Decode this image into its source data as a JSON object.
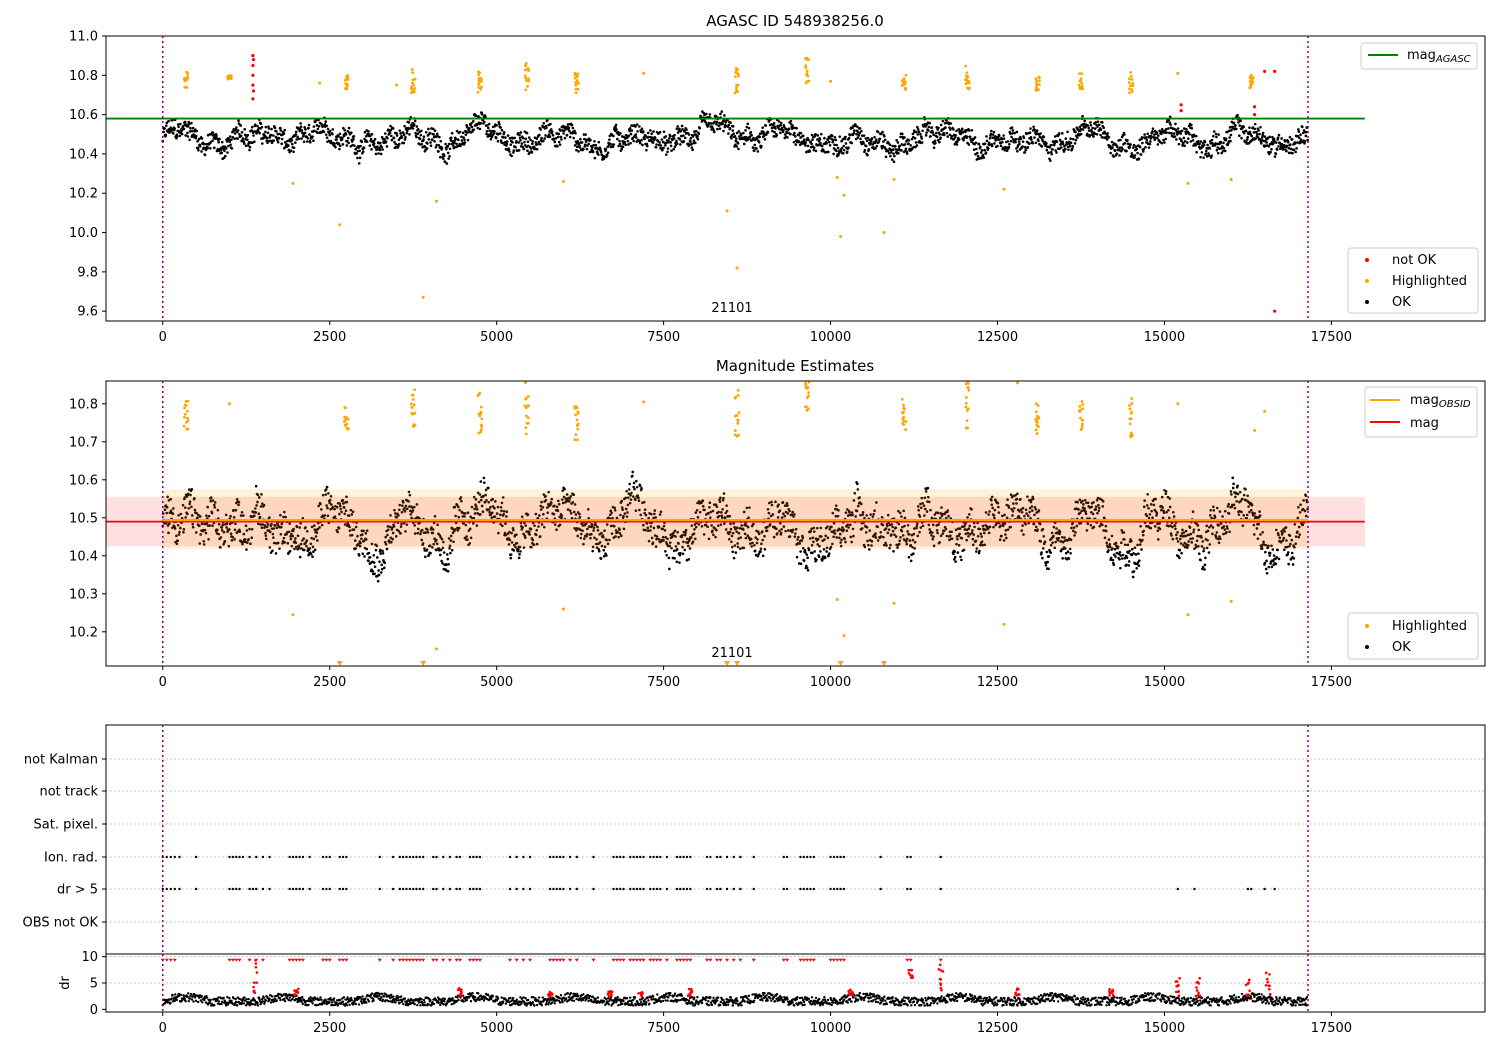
{
  "chart_data": [
    {
      "type": "scatter",
      "title": "AGASC ID 548938256.0",
      "xlim": [
        -850,
        19800
      ],
      "ylim": [
        9.55,
        11.0
      ],
      "xticks": [
        0,
        2500,
        5000,
        7500,
        10000,
        12500,
        15000,
        17500
      ],
      "yticks": [
        9.6,
        9.8,
        10.0,
        10.2,
        10.4,
        10.6,
        10.8,
        11.0
      ],
      "ytick_labels": [
        "9.6",
        "9.8",
        "10.0",
        "10.2",
        "10.4",
        "10.6",
        "10.8",
        "11.0"
      ],
      "obs_boundaries": [
        0,
        17150
      ],
      "obs_label": {
        "text": "21101",
        "x": 8600,
        "y": 9.58
      },
      "hline": {
        "name": "mag_AGASC",
        "y": 10.58,
        "x_range": [
          -850,
          18000
        ],
        "color": "#008000"
      },
      "series_style": {
        "ok": "#000000",
        "highlighted": "#ffa500",
        "not_ok": "#ff0000"
      },
      "ok_band": {
        "center": 10.48,
        "amplitude": 0.1
      },
      "highlighted_clusters": [
        {
          "x": 350,
          "y": [
            10.72,
            10.82
          ]
        },
        {
          "x": 1000,
          "y": [
            10.78,
            10.8
          ]
        },
        {
          "x": 2750,
          "y": [
            10.73,
            10.8
          ]
        },
        {
          "x": 3750,
          "y": [
            10.71,
            10.84
          ]
        },
        {
          "x": 4750,
          "y": [
            10.71,
            10.82
          ]
        },
        {
          "x": 5450,
          "y": [
            10.72,
            10.87
          ]
        },
        {
          "x": 6200,
          "y": [
            10.7,
            10.81
          ]
        },
        {
          "x": 8600,
          "y": [
            10.7,
            10.84
          ]
        },
        {
          "x": 9650,
          "y": [
            10.76,
            10.89
          ]
        },
        {
          "x": 11100,
          "y": [
            10.72,
            10.82
          ]
        },
        {
          "x": 12050,
          "y": [
            10.73,
            10.85
          ]
        },
        {
          "x": 13100,
          "y": [
            10.72,
            10.81
          ]
        },
        {
          "x": 13750,
          "y": [
            10.73,
            10.81
          ]
        },
        {
          "x": 14500,
          "y": [
            10.71,
            10.82
          ]
        },
        {
          "x": 16300,
          "y": [
            10.73,
            10.8
          ]
        }
      ],
      "highlighted_points": [
        {
          "x": 1950,
          "y": 10.25
        },
        {
          "x": 2650,
          "y": 10.04
        },
        {
          "x": 3900,
          "y": 9.67
        },
        {
          "x": 4100,
          "y": 10.16
        },
        {
          "x": 6000,
          "y": 10.26
        },
        {
          "x": 8450,
          "y": 10.11
        },
        {
          "x": 8600,
          "y": 9.82
        },
        {
          "x": 10100,
          "y": 10.28
        },
        {
          "x": 10150,
          "y": 9.98
        },
        {
          "x": 10200,
          "y": 10.19
        },
        {
          "x": 10800,
          "y": 10.0
        },
        {
          "x": 10950,
          "y": 10.27
        },
        {
          "x": 12600,
          "y": 10.22
        },
        {
          "x": 15350,
          "y": 10.25
        },
        {
          "x": 16000,
          "y": 10.27
        },
        {
          "x": 3500,
          "y": 10.75
        },
        {
          "x": 7200,
          "y": 10.81
        },
        {
          "x": 2350,
          "y": 10.76
        },
        {
          "x": 10000,
          "y": 10.77
        },
        {
          "x": 15200,
          "y": 10.81
        }
      ],
      "not_ok_points": [
        {
          "x": 1350,
          "y": 10.68
        },
        {
          "x": 1350,
          "y": 10.75
        },
        {
          "x": 1350,
          "y": 10.8
        },
        {
          "x": 1350,
          "y": 10.85
        },
        {
          "x": 1350,
          "y": 10.9
        },
        {
          "x": 1360,
          "y": 10.72
        },
        {
          "x": 1360,
          "y": 10.88
        },
        {
          "x": 15250,
          "y": 10.62
        },
        {
          "x": 15250,
          "y": 10.65
        },
        {
          "x": 16350,
          "y": 10.6
        },
        {
          "x": 16350,
          "y": 10.64
        },
        {
          "x": 16500,
          "y": 10.82
        },
        {
          "x": 16650,
          "y": 10.82
        },
        {
          "x": 16650,
          "y": 9.6
        }
      ],
      "legend_top": [
        {
          "label": "mag",
          "sub": "AGASC",
          "color": "#008000"
        }
      ],
      "legend_bottom": [
        {
          "label": "not OK",
          "color": "#ff0000"
        },
        {
          "label": "Highlighted",
          "color": "#ffa500"
        },
        {
          "label": "OK",
          "color": "#000000"
        }
      ]
    },
    {
      "type": "scatter",
      "title": "Magnitude Estimates",
      "xlim": [
        -850,
        19800
      ],
      "ylim": [
        10.11,
        10.86
      ],
      "xticks": [
        0,
        2500,
        5000,
        7500,
        10000,
        12500,
        15000,
        17500
      ],
      "yticks": [
        10.2,
        10.3,
        10.4,
        10.5,
        10.6,
        10.7,
        10.8
      ],
      "ytick_labels": [
        "10.2",
        "10.3",
        "10.4",
        "10.5",
        "10.6",
        "10.7",
        "10.8"
      ],
      "obs_boundaries": [
        0,
        17150
      ],
      "obs_label": {
        "text": "21101",
        "x": 8600,
        "y": 10.135
      },
      "mag_line": {
        "name": "mag",
        "y": 10.49,
        "band": [
          10.425,
          10.555
        ],
        "x_range": [
          -850,
          18000
        ],
        "color": "#ff0000"
      },
      "mag_obsid_line": {
        "name": "mag_OBSID",
        "y": 10.494,
        "band": [
          10.418,
          10.575
        ],
        "x_range": [
          0,
          17150
        ],
        "color": "#ffa500"
      },
      "ok_band": {
        "center": 10.48,
        "amplitude": 0.1
      },
      "highlighted_clusters": [
        {
          "x": 350,
          "y": [
            10.72,
            10.81
          ]
        },
        {
          "x": 2750,
          "y": [
            10.73,
            10.8
          ]
        },
        {
          "x": 3750,
          "y": [
            10.71,
            10.84
          ]
        },
        {
          "x": 4750,
          "y": [
            10.71,
            10.83
          ]
        },
        {
          "x": 5450,
          "y": [
            10.72,
            10.86
          ]
        },
        {
          "x": 6200,
          "y": [
            10.7,
            10.81
          ]
        },
        {
          "x": 8600,
          "y": [
            10.7,
            10.84
          ]
        },
        {
          "x": 9650,
          "y": [
            10.76,
            10.86
          ]
        },
        {
          "x": 11100,
          "y": [
            10.72,
            10.82
          ]
        },
        {
          "x": 12050,
          "y": [
            10.73,
            10.86
          ]
        },
        {
          "x": 13100,
          "y": [
            10.72,
            10.81
          ]
        },
        {
          "x": 13750,
          "y": [
            10.73,
            10.81
          ]
        },
        {
          "x": 14500,
          "y": [
            10.71,
            10.83
          ]
        }
      ],
      "highlighted_points": [
        {
          "x": 1950,
          "y": 10.245
        },
        {
          "x": 4100,
          "y": 10.155
        },
        {
          "x": 6000,
          "y": 10.26
        },
        {
          "x": 10100,
          "y": 10.285
        },
        {
          "x": 10200,
          "y": 10.19
        },
        {
          "x": 10950,
          "y": 10.275
        },
        {
          "x": 12600,
          "y": 10.22
        },
        {
          "x": 15350,
          "y": 10.245
        },
        {
          "x": 16000,
          "y": 10.28
        },
        {
          "x": 1000,
          "y": 10.8
        },
        {
          "x": 7200,
          "y": 10.805
        },
        {
          "x": 15200,
          "y": 10.8
        },
        {
          "x": 16500,
          "y": 10.78
        },
        {
          "x": 16350,
          "y": 10.73
        },
        {
          "x": 12800,
          "y": 10.855
        }
      ],
      "clipped_markers": [
        {
          "x": 2650
        },
        {
          "x": 3900
        },
        {
          "x": 8450
        },
        {
          "x": 8600
        },
        {
          "x": 10150
        },
        {
          "x": 10800
        }
      ],
      "legend_top": [
        {
          "label": "mag",
          "sub": "OBSID",
          "color": "#ffa500"
        },
        {
          "label": "mag",
          "sub": "",
          "color": "#ff0000"
        }
      ],
      "legend_bottom": [
        {
          "label": "Highlighted",
          "color": "#ffa500"
        },
        {
          "label": "OK",
          "color": "#000000"
        }
      ]
    },
    {
      "type": "scatter",
      "title": "",
      "xlim": [
        -850,
        19800
      ],
      "xticks": [
        0,
        2500,
        5000,
        7500,
        10000,
        12500,
        15000,
        17500
      ],
      "obs_boundaries": [
        0,
        17150
      ],
      "flag_rows": [
        "not Kalman",
        "not track",
        "Sat. pixel.",
        "Ion. rad.",
        "dr > 5",
        "OBS not OK"
      ],
      "flag_events": {
        "Ion. rad.": [
          0,
          60,
          120,
          180,
          250,
          500,
          1000,
          1050,
          1100,
          1150,
          1200,
          1300,
          1400,
          1500,
          1600,
          1900,
          1950,
          2000,
          2050,
          2100,
          2200,
          2400,
          2450,
          2500,
          2650,
          2700,
          2750,
          3250,
          3450,
          3550,
          3600,
          3650,
          3700,
          3750,
          3800,
          3850,
          3900,
          4050,
          4100,
          4200,
          4300,
          4400,
          4450,
          4600,
          4650,
          4700,
          4750,
          5200,
          5300,
          5400,
          5500,
          5800,
          5850,
          5900,
          5950,
          6000,
          6100,
          6200,
          6450,
          6750,
          6800,
          6850,
          6900,
          7000,
          7050,
          7100,
          7150,
          7200,
          7300,
          7350,
          7400,
          7450,
          7550,
          7700,
          7750,
          7800,
          7850,
          7900,
          8150,
          8200,
          8300,
          8350,
          8450,
          8550,
          8650,
          8850,
          9300,
          9350,
          9550,
          9600,
          9650,
          9700,
          9750,
          10000,
          10050,
          10100,
          10150,
          10200,
          10750,
          11150,
          11200,
          11650
        ],
        "dr > 5": [
          0,
          60,
          120,
          180,
          250,
          500,
          1000,
          1050,
          1100,
          1150,
          1300,
          1350,
          1400,
          1500,
          1600,
          1900,
          1950,
          2000,
          2050,
          2100,
          2200,
          2400,
          2450,
          2500,
          2650,
          2700,
          2750,
          3250,
          3450,
          3550,
          3600,
          3650,
          3700,
          3750,
          3800,
          3850,
          3900,
          4050,
          4100,
          4200,
          4300,
          4400,
          4450,
          4600,
          4650,
          4700,
          4750,
          5200,
          5300,
          5400,
          5500,
          5800,
          5850,
          5900,
          5950,
          6000,
          6100,
          6200,
          6450,
          6750,
          6800,
          6850,
          6900,
          7000,
          7050,
          7100,
          7150,
          7200,
          7300,
          7350,
          7400,
          7450,
          7550,
          7700,
          7750,
          7800,
          7850,
          7900,
          8150,
          8200,
          8300,
          8350,
          8450,
          8550,
          8650,
          8850,
          9300,
          9350,
          9550,
          9600,
          9650,
          9700,
          9750,
          10000,
          10050,
          10100,
          10150,
          10200,
          10750,
          11150,
          11200,
          11650,
          15200,
          15450,
          16250,
          16300,
          16500,
          16650
        ]
      }
    },
    {
      "type": "scatter",
      "ylabel": "dr",
      "xlim": [
        -850,
        19800
      ],
      "ylim": [
        -0.5,
        10.5
      ],
      "xticks": [
        0,
        2500,
        5000,
        7500,
        10000,
        12500,
        15000,
        17500
      ],
      "xtick_labels": [
        "0",
        "2500",
        "5000",
        "7500",
        "10000",
        "12500",
        "15000",
        "17500"
      ],
      "yticks": [
        0,
        5,
        10
      ],
      "ytick_labels": [
        "0",
        "5",
        "10"
      ],
      "obs_boundaries": [
        0,
        17150
      ],
      "dr_base": {
        "center": 1.2,
        "amplitude": 1.0
      },
      "red_spikes": [
        {
          "x": 1380,
          "y": [
            3,
            9.5
          ]
        },
        {
          "x": 2000,
          "y": [
            2.5,
            4
          ]
        },
        {
          "x": 4450,
          "y": [
            2.5,
            4
          ]
        },
        {
          "x": 5800,
          "y": [
            2.5,
            3.5
          ]
        },
        {
          "x": 6700,
          "y": [
            2.5,
            3.5
          ]
        },
        {
          "x": 7150,
          "y": [
            2.5,
            3.5
          ]
        },
        {
          "x": 7900,
          "y": [
            2.5,
            4
          ]
        },
        {
          "x": 10300,
          "y": [
            2.5,
            4
          ]
        },
        {
          "x": 11200,
          "y": [
            6,
            7.5
          ]
        },
        {
          "x": 11650,
          "y": [
            2.5,
            9
          ]
        },
        {
          "x": 12800,
          "y": [
            2.5,
            4
          ]
        },
        {
          "x": 14200,
          "y": [
            2.5,
            4
          ]
        },
        {
          "x": 15200,
          "y": [
            2.5,
            6
          ]
        },
        {
          "x": 15500,
          "y": [
            2.5,
            6
          ]
        },
        {
          "x": 16250,
          "y": [
            2.5,
            6
          ]
        },
        {
          "x": 16550,
          "y": [
            2.5,
            7
          ]
        }
      ],
      "saturated_x": [
        0,
        60,
        120,
        180,
        1000,
        1050,
        1100,
        1150,
        1300,
        1400,
        1500,
        1900,
        1950,
        2000,
        2050,
        2100,
        2400,
        2450,
        2500,
        2650,
        2700,
        2750,
        3250,
        3450,
        3550,
        3600,
        3650,
        3700,
        3750,
        3800,
        3850,
        3900,
        4050,
        4100,
        4200,
        4300,
        4400,
        4450,
        4600,
        4650,
        4700,
        4750,
        5200,
        5300,
        5400,
        5500,
        5800,
        5850,
        5900,
        5950,
        6000,
        6100,
        6200,
        6450,
        6750,
        6800,
        6850,
        6900,
        7000,
        7050,
        7100,
        7150,
        7200,
        7300,
        7350,
        7400,
        7450,
        7550,
        7700,
        7750,
        7800,
        7850,
        7900,
        8150,
        8200,
        8300,
        8350,
        8450,
        8550,
        8650,
        8850,
        9300,
        9350,
        9550,
        9600,
        9650,
        9700,
        9750,
        10000,
        10050,
        10100,
        10150,
        10200,
        11150,
        11200,
        11650
      ]
    }
  ]
}
